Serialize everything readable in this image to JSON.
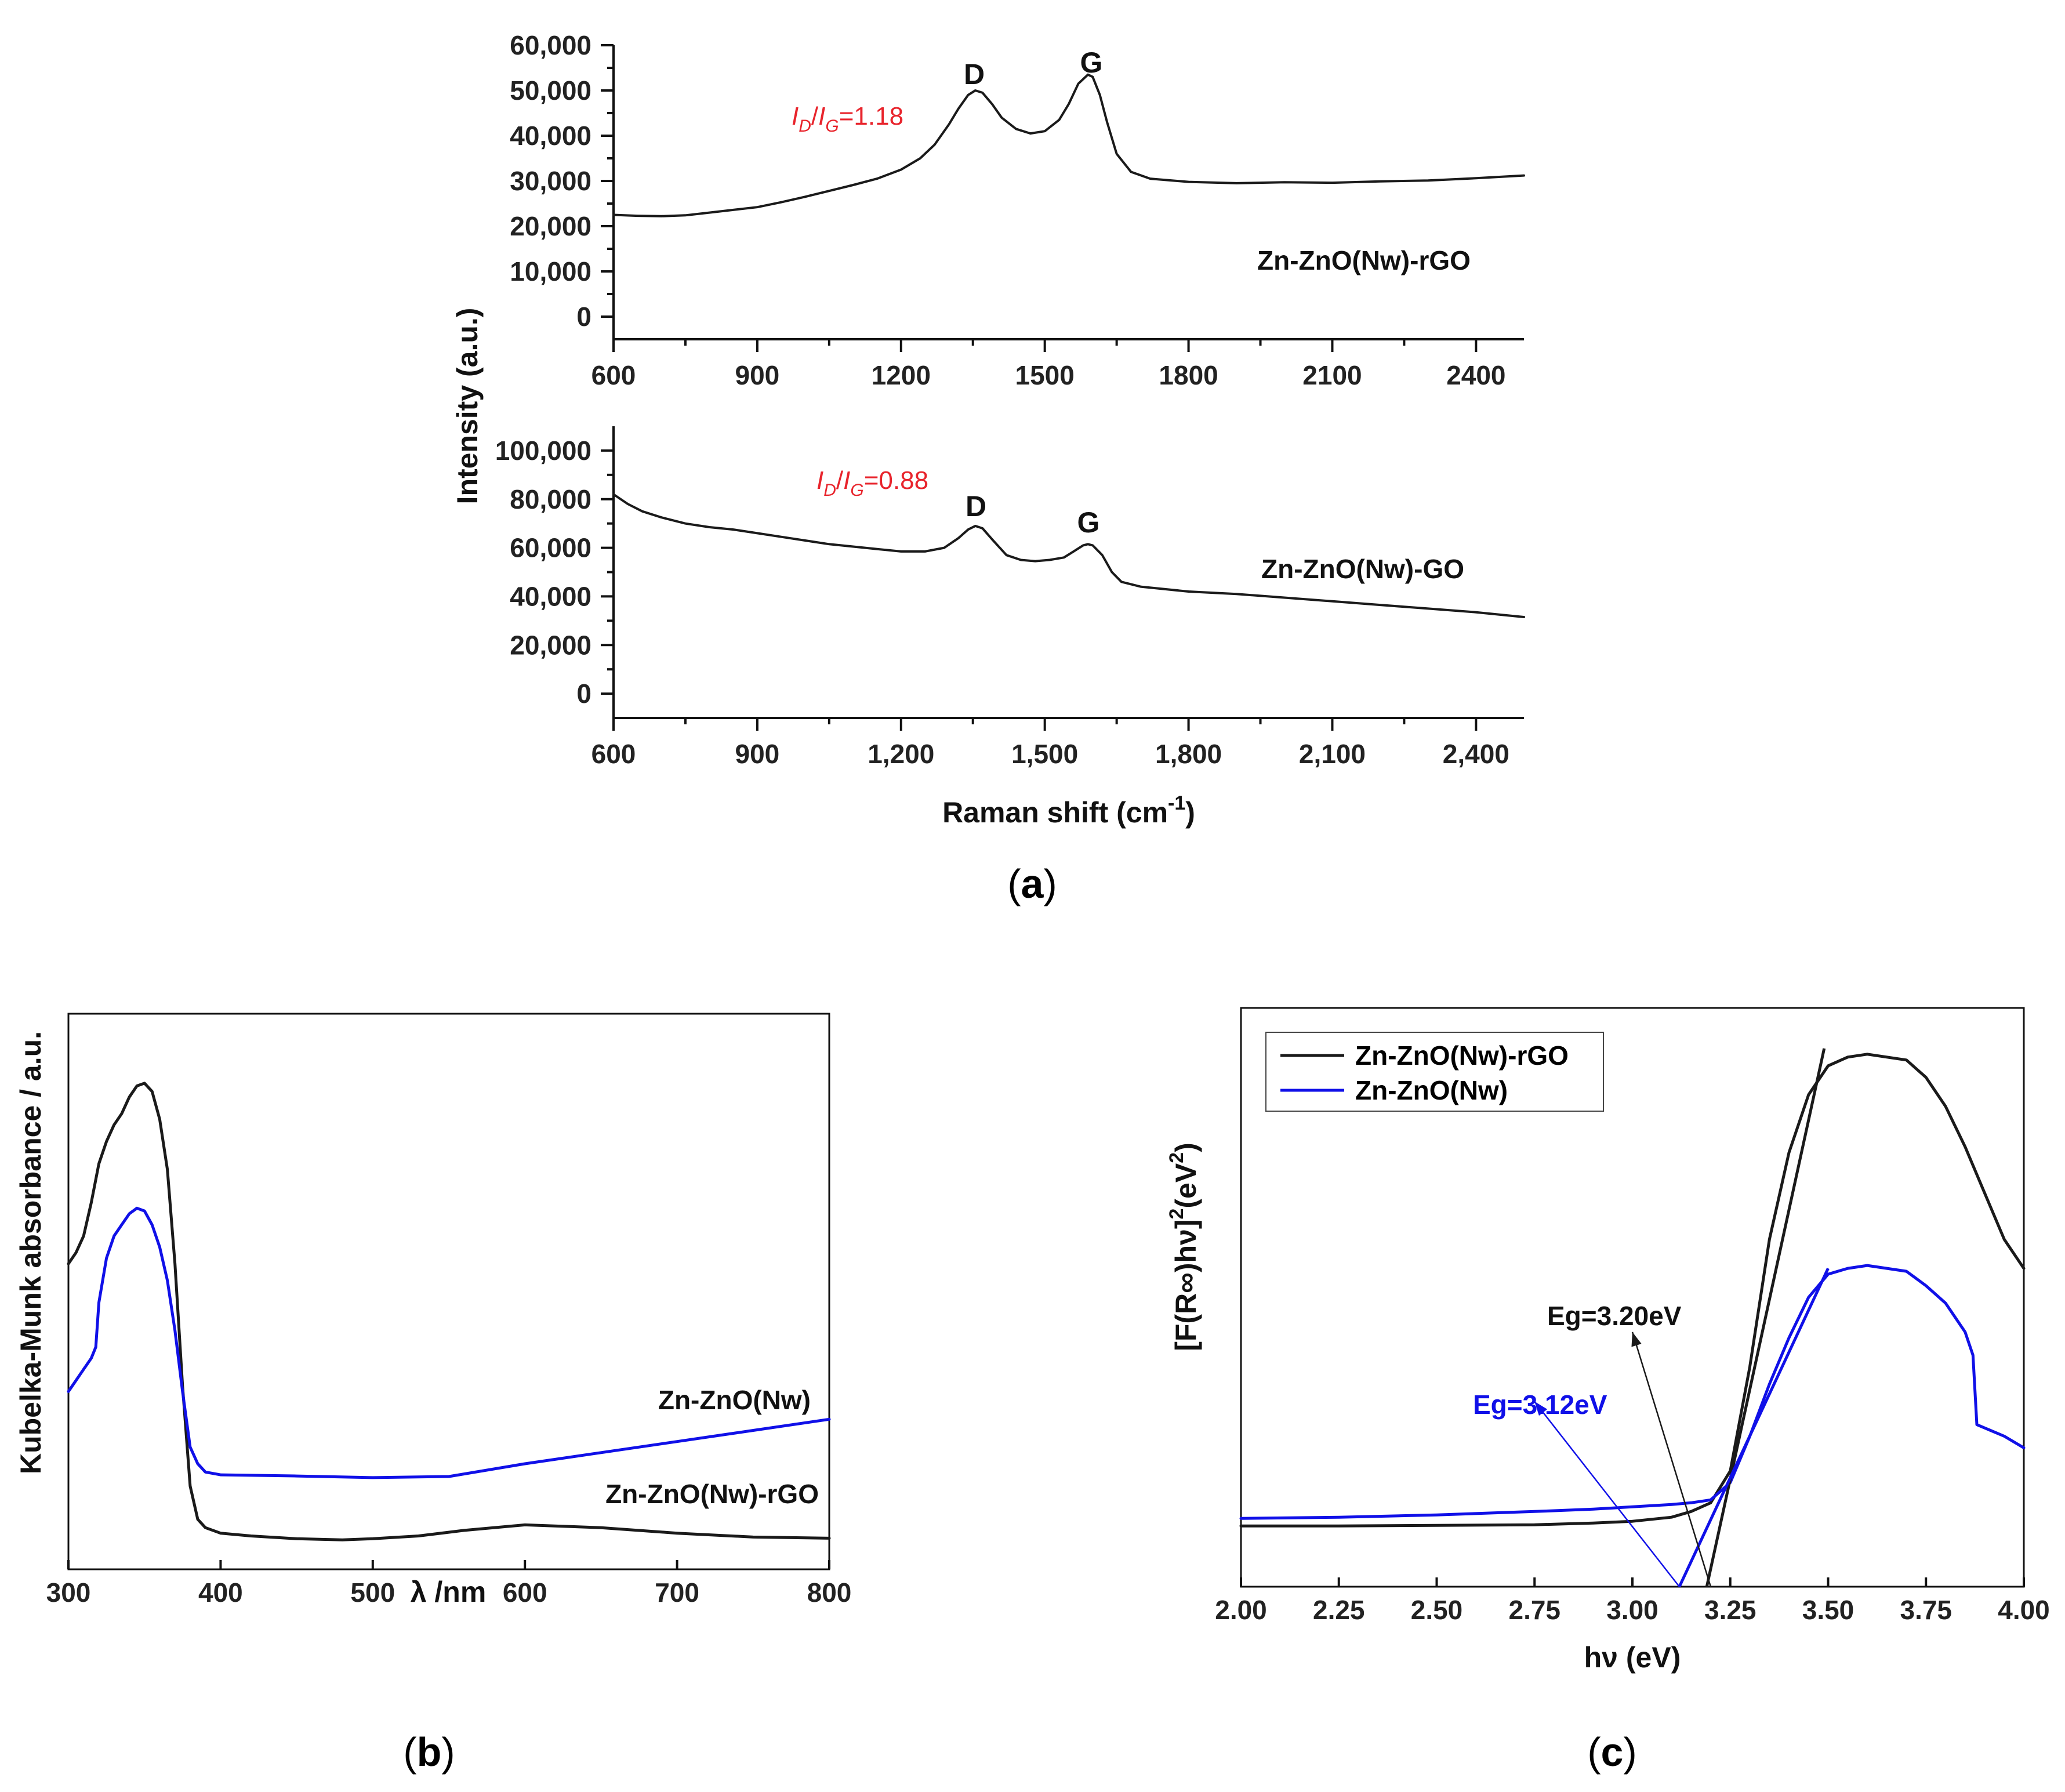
{
  "chart_data": [
    {
      "id": "a_top",
      "type": "line",
      "panel_caption": "a",
      "ylabel": "Intensity (a.u.)",
      "xlim": [
        600,
        2500
      ],
      "ylim": [
        -5000,
        60000
      ],
      "xticks": [
        {
          "value": 600,
          "label": "600"
        },
        {
          "value": 900,
          "label": "900"
        },
        {
          "value": 1200,
          "label": "1200"
        },
        {
          "value": 1500,
          "label": "1500"
        },
        {
          "value": 1800,
          "label": "1800"
        },
        {
          "value": 2100,
          "label": "2100"
        },
        {
          "value": 2400,
          "label": "2400"
        }
      ],
      "yticks": [
        {
          "value": 0,
          "label": "0"
        },
        {
          "value": 10000,
          "label": "10,000"
        },
        {
          "value": 20000,
          "label": "20,000"
        },
        {
          "value": 30000,
          "label": "30,000"
        },
        {
          "value": 40000,
          "label": "40,000"
        },
        {
          "value": 50000,
          "label": "50,000"
        },
        {
          "value": 60000,
          "label": "60,000"
        }
      ],
      "series": [
        {
          "name": "Zn-ZnO(Nw)-rGO",
          "color": "#1a1a1a",
          "x": [
            600,
            650,
            700,
            750,
            800,
            850,
            900,
            950,
            1000,
            1050,
            1100,
            1150,
            1200,
            1240,
            1270,
            1300,
            1320,
            1340,
            1355,
            1370,
            1390,
            1410,
            1440,
            1470,
            1500,
            1530,
            1550,
            1570,
            1590,
            1600,
            1615,
            1630,
            1650,
            1680,
            1720,
            1800,
            1900,
            2000,
            2100,
            2200,
            2300,
            2400,
            2500
          ],
          "y": [
            22500,
            22300,
            22200,
            22400,
            23000,
            23600,
            24200,
            25300,
            26500,
            27800,
            29100,
            30500,
            32500,
            35000,
            38000,
            42500,
            46000,
            49000,
            50000,
            49500,
            47000,
            44000,
            41500,
            40500,
            41000,
            43500,
            47000,
            51500,
            53500,
            53000,
            49000,
            43000,
            36000,
            32000,
            30500,
            29800,
            29500,
            29700,
            29600,
            29900,
            30100,
            30600,
            31200
          ]
        }
      ],
      "annotations": {
        "ratio_main": "I",
        "ratio_sub1": "D",
        "ratio_slash": "/",
        "ratio_main2": "I",
        "ratio_sub2": "G",
        "ratio_value": "=1.18",
        "peak_d": "D",
        "peak_g": "G",
        "series_label": "Zn-ZnO(Nw)-rGO"
      }
    },
    {
      "id": "a_bottom",
      "type": "line",
      "panel_caption": "a",
      "xlabel_main": "Raman shift (cm",
      "xlabel_sup": "-1",
      "xlabel_end": ")",
      "xlim": [
        600,
        2500
      ],
      "ylim": [
        -10000,
        110000
      ],
      "xticks": [
        {
          "value": 600,
          "label": "600"
        },
        {
          "value": 900,
          "label": "900"
        },
        {
          "value": 1200,
          "label": "1,200"
        },
        {
          "value": 1500,
          "label": "1,500"
        },
        {
          "value": 1800,
          "label": "1,800"
        },
        {
          "value": 2100,
          "label": "2,100"
        },
        {
          "value": 2400,
          "label": "2,400"
        }
      ],
      "yticks": [
        {
          "value": 0,
          "label": "0"
        },
        {
          "value": 20000,
          "label": "20,000"
        },
        {
          "value": 40000,
          "label": "40,000"
        },
        {
          "value": 60000,
          "label": "60,000"
        },
        {
          "value": 80000,
          "label": "80,000"
        },
        {
          "value": 100000,
          "label": "100,000"
        }
      ],
      "series": [
        {
          "name": "Zn-ZnO(Nw)-GO",
          "color": "#1a1a1a",
          "x": [
            600,
            630,
            660,
            700,
            750,
            800,
            850,
            900,
            950,
            1000,
            1050,
            1100,
            1150,
            1200,
            1250,
            1290,
            1320,
            1340,
            1355,
            1370,
            1390,
            1420,
            1450,
            1480,
            1510,
            1540,
            1560,
            1580,
            1590,
            1600,
            1620,
            1640,
            1660,
            1700,
            1800,
            1900,
            2000,
            2100,
            2200,
            2300,
            2400,
            2500
          ],
          "y": [
            82000,
            78000,
            75000,
            72500,
            70000,
            68500,
            67500,
            66000,
            64500,
            63000,
            61500,
            60500,
            59500,
            58500,
            58500,
            60000,
            64000,
            67500,
            69000,
            68000,
            63500,
            57000,
            55000,
            54500,
            55000,
            56000,
            58500,
            61000,
            61500,
            61000,
            57000,
            50000,
            46000,
            44000,
            42000,
            41000,
            39500,
            38000,
            36500,
            35000,
            33500,
            31500
          ]
        }
      ],
      "annotations": {
        "ratio_main": "I",
        "ratio_sub1": "D",
        "ratio_slash": "/",
        "ratio_main2": "I",
        "ratio_sub2": "G",
        "ratio_value": "=0.88",
        "peak_d": "D",
        "peak_g": "G",
        "series_label": "Zn-ZnO(Nw)-GO"
      }
    },
    {
      "id": "b",
      "type": "line",
      "panel_caption": "b",
      "xlabel": "λ /nm",
      "ylabel": "Kubelka-Munk absorbance / a.u.",
      "xlim": [
        300,
        800
      ],
      "ylim": [
        0,
        1.0
      ],
      "xticks": [
        {
          "value": 300,
          "label": "300"
        },
        {
          "value": 400,
          "label": "400"
        },
        {
          "value": 500,
          "label": "500"
        },
        {
          "value": 600,
          "label": "600"
        },
        {
          "value": 700,
          "label": "700"
        },
        {
          "value": 800,
          "label": "800"
        }
      ],
      "series": [
        {
          "name": "Zn-ZnO(Nw)-rGO",
          "color": "#1a1a1a",
          "x": [
            300,
            305,
            310,
            315,
            320,
            325,
            330,
            335,
            340,
            345,
            350,
            355,
            360,
            365,
            370,
            375,
            380,
            385,
            390,
            400,
            420,
            450,
            480,
            500,
            530,
            560,
            600,
            650,
            700,
            750,
            800
          ],
          "y": [
            0.55,
            0.57,
            0.6,
            0.66,
            0.73,
            0.77,
            0.8,
            0.82,
            0.85,
            0.87,
            0.875,
            0.86,
            0.81,
            0.72,
            0.55,
            0.33,
            0.15,
            0.09,
            0.075,
            0.065,
            0.06,
            0.055,
            0.053,
            0.055,
            0.06,
            0.07,
            0.08,
            0.075,
            0.065,
            0.058,
            0.056
          ]
        },
        {
          "name": "Zn-ZnO(Nw)",
          "color": "#1010e8",
          "x": [
            300,
            305,
            310,
            315,
            318,
            320,
            325,
            330,
            335,
            340,
            345,
            350,
            355,
            360,
            365,
            370,
            375,
            380,
            385,
            390,
            400,
            450,
            500,
            550,
            600,
            650,
            700,
            750,
            800
          ],
          "y": [
            0.32,
            0.34,
            0.36,
            0.38,
            0.4,
            0.48,
            0.56,
            0.6,
            0.62,
            0.64,
            0.65,
            0.645,
            0.62,
            0.58,
            0.52,
            0.43,
            0.32,
            0.22,
            0.19,
            0.175,
            0.17,
            0.168,
            0.165,
            0.167,
            0.19,
            0.21,
            0.23,
            0.25,
            0.27
          ]
        }
      ],
      "annotations": {
        "label_blue": "Zn-ZnO(Nw)",
        "label_black": "Zn-ZnO(Nw)-rGO"
      }
    },
    {
      "id": "c",
      "type": "line",
      "panel_caption": "c",
      "xlabel": "hν (eV)",
      "ylabel_main": "[F(R∞)hν]",
      "ylabel_sup1": "2",
      "ylabel_mid": "(eV",
      "ylabel_sup2": "2",
      "ylabel_end": ")",
      "xlim": [
        2.0,
        4.0
      ],
      "ylim": [
        0,
        1.0
      ],
      "xticks": [
        {
          "value": 2.0,
          "label": "2.00"
        },
        {
          "value": 2.25,
          "label": "2.25"
        },
        {
          "value": 2.5,
          "label": "2.50"
        },
        {
          "value": 2.75,
          "label": "2.75"
        },
        {
          "value": 3.0,
          "label": "3.00"
        },
        {
          "value": 3.25,
          "label": "3.25"
        },
        {
          "value": 3.5,
          "label": "3.50"
        },
        {
          "value": 3.75,
          "label": "3.75"
        },
        {
          "value": 4.0,
          "label": "4.00"
        }
      ],
      "legend": {
        "position": "top-left",
        "entries": [
          "Zn-ZnO(Nw)-rGO",
          "Zn-ZnO(Nw)"
        ]
      },
      "series": [
        {
          "name": "Zn-ZnO(Nw)-rGO",
          "color": "#1a1a1a",
          "x": [
            2.0,
            2.25,
            2.5,
            2.75,
            2.9,
            3.0,
            3.1,
            3.15,
            3.2,
            3.25,
            3.3,
            3.35,
            3.4,
            3.45,
            3.5,
            3.55,
            3.6,
            3.65,
            3.7,
            3.75,
            3.8,
            3.85,
            3.9,
            3.95,
            4.0
          ],
          "y": [
            0.105,
            0.105,
            0.106,
            0.107,
            0.11,
            0.113,
            0.12,
            0.13,
            0.145,
            0.2,
            0.38,
            0.6,
            0.75,
            0.85,
            0.9,
            0.915,
            0.92,
            0.915,
            0.91,
            0.88,
            0.83,
            0.76,
            0.68,
            0.6,
            0.55
          ]
        },
        {
          "name": "Zn-ZnO(Nw)",
          "color": "#1010e8",
          "x": [
            2.0,
            2.25,
            2.5,
            2.75,
            2.9,
            3.0,
            3.1,
            3.15,
            3.2,
            3.25,
            3.3,
            3.35,
            3.4,
            3.45,
            3.5,
            3.55,
            3.6,
            3.65,
            3.7,
            3.75,
            3.8,
            3.85,
            3.87,
            3.88,
            3.95,
            4.0
          ],
          "y": [
            0.118,
            0.12,
            0.124,
            0.13,
            0.134,
            0.138,
            0.142,
            0.145,
            0.15,
            0.18,
            0.26,
            0.35,
            0.43,
            0.5,
            0.54,
            0.55,
            0.555,
            0.55,
            0.545,
            0.52,
            0.49,
            0.44,
            0.4,
            0.28,
            0.26,
            0.24
          ]
        }
      ],
      "tangents": [
        {
          "name": "rGO tangent",
          "color": "#1a1a1a",
          "from": [
            3.19,
            0.0
          ],
          "to": [
            3.49,
            0.93
          ]
        },
        {
          "name": "Nw tangent",
          "color": "#1010e8",
          "from": [
            3.12,
            0.0
          ],
          "to": [
            3.5,
            0.55
          ]
        }
      ],
      "annotations": {
        "eg_black": "Eg=3.20eV",
        "eg_blue": "Eg=3.12eV"
      },
      "arrows": [
        {
          "name": "eg-black-arrow",
          "color": "#1a1a1a",
          "from": [
            3.2,
            0.0
          ],
          "to": [
            3.0,
            0.44
          ]
        },
        {
          "name": "eg-blue-arrow",
          "color": "#1010e8",
          "from": [
            3.12,
            0.0
          ],
          "to": [
            2.75,
            0.32
          ]
        }
      ]
    }
  ],
  "captions": {
    "a": "a",
    "b": "b",
    "c": "c"
  }
}
